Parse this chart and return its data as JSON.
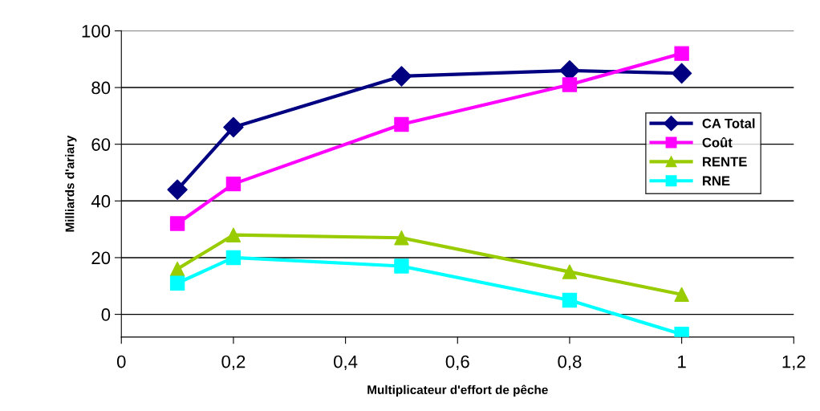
{
  "chart_data": {
    "type": "line",
    "xlabel": "Multiplicateur d'effort de pêche",
    "ylabel": "Milliards d'ariary",
    "x": [
      0.1,
      0.2,
      0.5,
      0.8,
      1
    ],
    "series": [
      {
        "name": "CA Total",
        "color": "#000080",
        "marker": "diamond",
        "values": [
          44,
          66,
          84,
          86,
          85
        ]
      },
      {
        "name": "Coût",
        "color": "#ff00ff",
        "marker": "square",
        "values": [
          32,
          46,
          67,
          81,
          92
        ]
      },
      {
        "name": "RENTE",
        "color": "#99cc00",
        "marker": "triangle",
        "values": [
          16,
          28,
          27,
          15,
          7
        ]
      },
      {
        "name": "RNE",
        "color": "#00ffff",
        "marker": "square",
        "values": [
          11,
          20,
          17,
          5,
          -7
        ]
      }
    ],
    "xlim": [
      0,
      1.2
    ],
    "xticks": [
      0,
      {
        "value": 0.2,
        "label": "0,2"
      },
      {
        "value": 0.4,
        "label": "0,4"
      },
      {
        "value": 0.6,
        "label": "0,6"
      },
      {
        "value": 0.8,
        "label": "0,8"
      },
      1,
      {
        "value": 1.2,
        "label": "1,2"
      }
    ],
    "ylim": [
      -8,
      100
    ],
    "yticks": [
      0,
      20,
      40,
      60,
      80,
      100
    ],
    "grid": "y",
    "legend": "right",
    "line_style": "solid"
  }
}
